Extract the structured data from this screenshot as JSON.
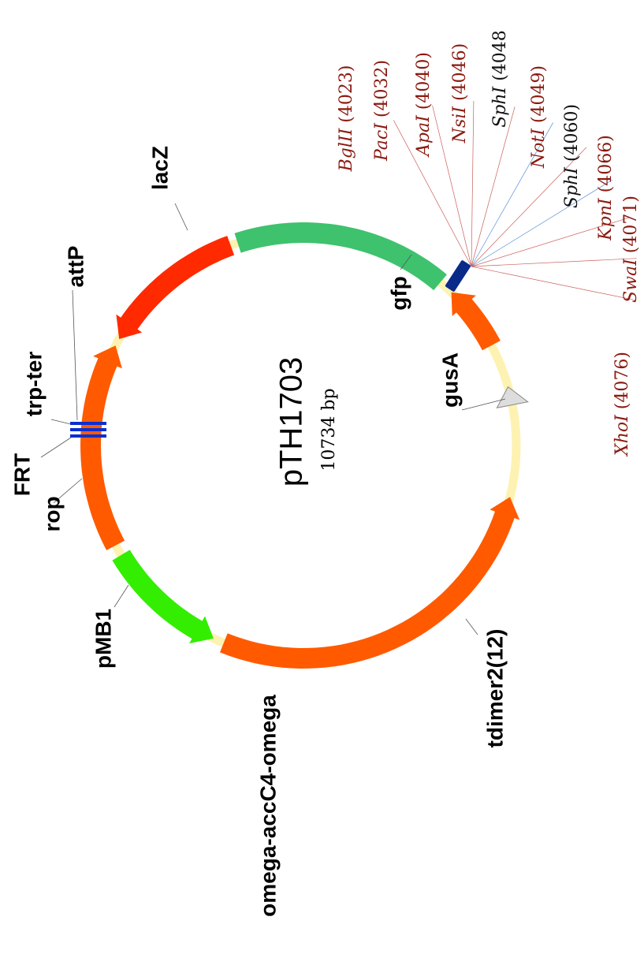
{
  "plasmid": {
    "name": "pTH1703",
    "size_label": "10734 bp",
    "length_bp": 10734
  },
  "colors": {
    "backbone": "#fdf2b2",
    "backbone_stroke": "#e2d58a",
    "orange_feature": "#ff5a00",
    "red_feature": "#ff2a00",
    "green_feature": "#33ee00",
    "teal_feature": "#3ec26e",
    "terminator": "#0a2fd0",
    "mcs_box": "#0a2a8a",
    "site_red": "#8b1a10",
    "site_black": "#111111",
    "site_line_red": "#c9605a",
    "site_line_blue": "#5a8ed6",
    "leader_line": "#555555"
  },
  "features": [
    {
      "key": "lacZ",
      "label": "lacZ",
      "start_deg": 248,
      "end_deg": 346,
      "dir": "ccw",
      "color": "#ff5a00"
    },
    {
      "key": "gfp",
      "label": "gfp",
      "start_deg": 211,
      "end_deg": 245,
      "dir": "ccw",
      "color": "#33ee00"
    },
    {
      "key": "gusA",
      "label": "gusA",
      "start_deg": 152,
      "end_deg": 208,
      "dir": "cw",
      "color": "#ff5a00"
    },
    {
      "key": "tdimer",
      "label": "tdimer2(12)",
      "start_deg": 110,
      "end_deg": 150,
      "dir": "ccw",
      "color": "#ff2a00"
    },
    {
      "key": "omega",
      "label": "omega-accC4-omega",
      "start_deg": 50,
      "end_deg": 108,
      "dir": "none",
      "color": "#3ec26e"
    },
    {
      "key": "pmb1",
      "label": "pMB1",
      "start_deg": 28,
      "end_deg": 46,
      "dir": "ccw",
      "color": "#ff5a00"
    },
    {
      "key": "rop",
      "label": "rop",
      "start_deg": 11,
      "end_deg": 16,
      "dir": "ccw",
      "color": "#dddddd"
    }
  ],
  "markers": [
    {
      "key": "trp-ter",
      "label": "trp-ter"
    },
    {
      "key": "frt",
      "label": "FRT"
    },
    {
      "key": "attp",
      "label": "attP"
    }
  ],
  "sites": [
    {
      "name": "BglII",
      "pos": "(4023)",
      "color": "#8b1a10"
    },
    {
      "name": "PacI",
      "pos": "(4032)",
      "color": "#8b1a10"
    },
    {
      "name": "ApaI",
      "pos": "(4040)",
      "color": "#8b1a10"
    },
    {
      "name": "NsiI",
      "pos": "(4046)",
      "color": "#8b1a10"
    },
    {
      "name": "SphI",
      "pos": "(4048",
      "color": "#111111"
    },
    {
      "name": "NotI",
      "pos": "(4049)",
      "color": "#8b1a10"
    },
    {
      "name": "SphI",
      "pos": "(4060)",
      "color": "#111111"
    },
    {
      "name": "KpnI",
      "pos": "(4066)",
      "color": "#8b1a10"
    },
    {
      "name": "SwaI",
      "pos": "(4071)",
      "color": "#8b1a10"
    },
    {
      "name": "XhoI",
      "pos": "(4076)",
      "color": "#8b1a10"
    }
  ]
}
